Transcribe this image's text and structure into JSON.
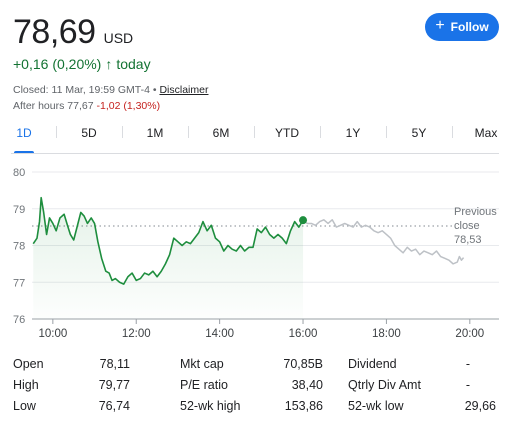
{
  "quote": {
    "price": "78,69",
    "currency": "USD",
    "change": "+0,16 (0,20%)",
    "change_period": "today",
    "closed_text": "Closed: 11 Mar, 19:59 GMT-4 •",
    "disclaimer": "Disclaimer",
    "after_hours_prefix": "After hours 77,67",
    "after_hours_change": "-1,02 (1,30%)"
  },
  "follow_button": {
    "label": "Follow"
  },
  "tabs": [
    "1D",
    "5D",
    "1M",
    "6M",
    "YTD",
    "1Y",
    "5Y",
    "Max"
  ],
  "colors": {
    "accent": "#1a73e8",
    "positive": "#137333",
    "negative": "#c5221f",
    "line_regular": "#1e8e3e",
    "line_after_hours": "#bdc1c6"
  },
  "stats": {
    "col1": [
      {
        "label": "Open",
        "value": "78,11"
      },
      {
        "label": "High",
        "value": "79,77"
      },
      {
        "label": "Low",
        "value": "76,74"
      }
    ],
    "col2": [
      {
        "label": "Mkt cap",
        "value": "70,85B"
      },
      {
        "label": "P/E ratio",
        "value": "38,40"
      },
      {
        "label": "52-wk high",
        "value": "153,86"
      }
    ],
    "col3": [
      {
        "label": "Dividend",
        "value": "-"
      },
      {
        "label": "Qtrly Div Amt",
        "value": "-"
      },
      {
        "label": "52-wk low",
        "value": "29,66"
      }
    ]
  },
  "chart_data": {
    "type": "line",
    "title": "",
    "xlabel": "",
    "ylabel": "",
    "ylim": [
      76,
      80
    ],
    "yticks": [
      76,
      77,
      78,
      79,
      80
    ],
    "xlim": [
      9.5,
      20.7
    ],
    "xticks": [
      {
        "value": 10,
        "label": "10:00"
      },
      {
        "value": 12,
        "label": "12:00"
      },
      {
        "value": 14,
        "label": "14:00"
      },
      {
        "value": 16,
        "label": "16:00"
      },
      {
        "value": 18,
        "label": "18:00"
      },
      {
        "value": 20,
        "label": "20:00"
      }
    ],
    "grid": true,
    "previous_close": {
      "value": 78.53,
      "label_line1": "Previous",
      "label_line2": "close",
      "label_value": "78,53"
    },
    "series": [
      {
        "points": [
          [
            9.53,
            78.05
          ],
          [
            9.62,
            78.2
          ],
          [
            9.68,
            78.65
          ],
          [
            9.72,
            79.3
          ],
          [
            9.78,
            78.9
          ],
          [
            9.85,
            78.3
          ],
          [
            9.92,
            78.75
          ],
          [
            10.0,
            78.6
          ],
          [
            10.08,
            78.4
          ],
          [
            10.17,
            78.75
          ],
          [
            10.27,
            78.85
          ],
          [
            10.35,
            78.55
          ],
          [
            10.42,
            78.3
          ],
          [
            10.5,
            78.15
          ],
          [
            10.58,
            78.5
          ],
          [
            10.67,
            78.9
          ],
          [
            10.75,
            78.8
          ],
          [
            10.83,
            78.6
          ],
          [
            10.92,
            78.75
          ],
          [
            11.0,
            78.6
          ],
          [
            11.08,
            78.1
          ],
          [
            11.17,
            77.65
          ],
          [
            11.27,
            77.3
          ],
          [
            11.35,
            77.25
          ],
          [
            11.42,
            77.05
          ],
          [
            11.5,
            77.1
          ],
          [
            11.6,
            77.0
          ],
          [
            11.7,
            76.95
          ],
          [
            11.8,
            77.15
          ],
          [
            11.9,
            77.25
          ],
          [
            12.0,
            77.05
          ],
          [
            12.1,
            77.1
          ],
          [
            12.2,
            77.25
          ],
          [
            12.3,
            77.2
          ],
          [
            12.4,
            77.3
          ],
          [
            12.5,
            77.15
          ],
          [
            12.6,
            77.3
          ],
          [
            12.7,
            77.5
          ],
          [
            12.8,
            77.75
          ],
          [
            12.9,
            78.2
          ],
          [
            13.0,
            78.1
          ],
          [
            13.1,
            78.0
          ],
          [
            13.2,
            78.1
          ],
          [
            13.3,
            78.05
          ],
          [
            13.4,
            78.2
          ],
          [
            13.5,
            78.35
          ],
          [
            13.6,
            78.65
          ],
          [
            13.7,
            78.4
          ],
          [
            13.8,
            78.55
          ],
          [
            13.9,
            78.2
          ],
          [
            14.0,
            78.1
          ],
          [
            14.1,
            77.85
          ],
          [
            14.2,
            78.0
          ],
          [
            14.3,
            77.9
          ],
          [
            14.4,
            77.85
          ],
          [
            14.5,
            78.0
          ],
          [
            14.6,
            77.85
          ],
          [
            14.7,
            77.95
          ],
          [
            14.8,
            77.95
          ],
          [
            14.9,
            78.45
          ],
          [
            15.0,
            78.35
          ],
          [
            15.1,
            78.5
          ],
          [
            15.2,
            78.3
          ],
          [
            15.3,
            78.2
          ],
          [
            15.4,
            78.3
          ],
          [
            15.5,
            78.2
          ],
          [
            15.6,
            78.05
          ],
          [
            15.7,
            78.4
          ],
          [
            15.8,
            78.65
          ],
          [
            15.9,
            78.5
          ],
          [
            16.0,
            78.69
          ]
        ]
      },
      {
        "points": [
          [
            16.0,
            78.69
          ],
          [
            16.1,
            78.6
          ],
          [
            16.2,
            78.6
          ],
          [
            16.3,
            78.55
          ],
          [
            16.4,
            78.65
          ],
          [
            16.5,
            78.7
          ],
          [
            16.6,
            78.6
          ],
          [
            16.7,
            78.7
          ],
          [
            16.8,
            78.5
          ],
          [
            16.9,
            78.55
          ],
          [
            17.0,
            78.6
          ],
          [
            17.1,
            78.55
          ],
          [
            17.2,
            78.5
          ],
          [
            17.3,
            78.65
          ],
          [
            17.4,
            78.5
          ],
          [
            17.5,
            78.55
          ],
          [
            17.6,
            78.5
          ],
          [
            17.7,
            78.4
          ],
          [
            17.8,
            78.35
          ],
          [
            17.9,
            78.4
          ],
          [
            18.0,
            78.3
          ],
          [
            18.1,
            78.2
          ],
          [
            18.2,
            78.0
          ],
          [
            18.3,
            77.9
          ],
          [
            18.4,
            77.8
          ],
          [
            18.5,
            77.95
          ],
          [
            18.6,
            77.85
          ],
          [
            18.7,
            77.9
          ],
          [
            18.8,
            77.75
          ],
          [
            18.9,
            77.85
          ],
          [
            19.0,
            77.8
          ],
          [
            19.1,
            77.75
          ],
          [
            19.2,
            77.85
          ],
          [
            19.3,
            77.7
          ],
          [
            19.4,
            77.65
          ],
          [
            19.5,
            77.6
          ],
          [
            19.6,
            77.5
          ],
          [
            19.7,
            77.55
          ],
          [
            19.75,
            77.7
          ],
          [
            19.8,
            77.6
          ],
          [
            19.85,
            77.67
          ]
        ]
      }
    ]
  }
}
